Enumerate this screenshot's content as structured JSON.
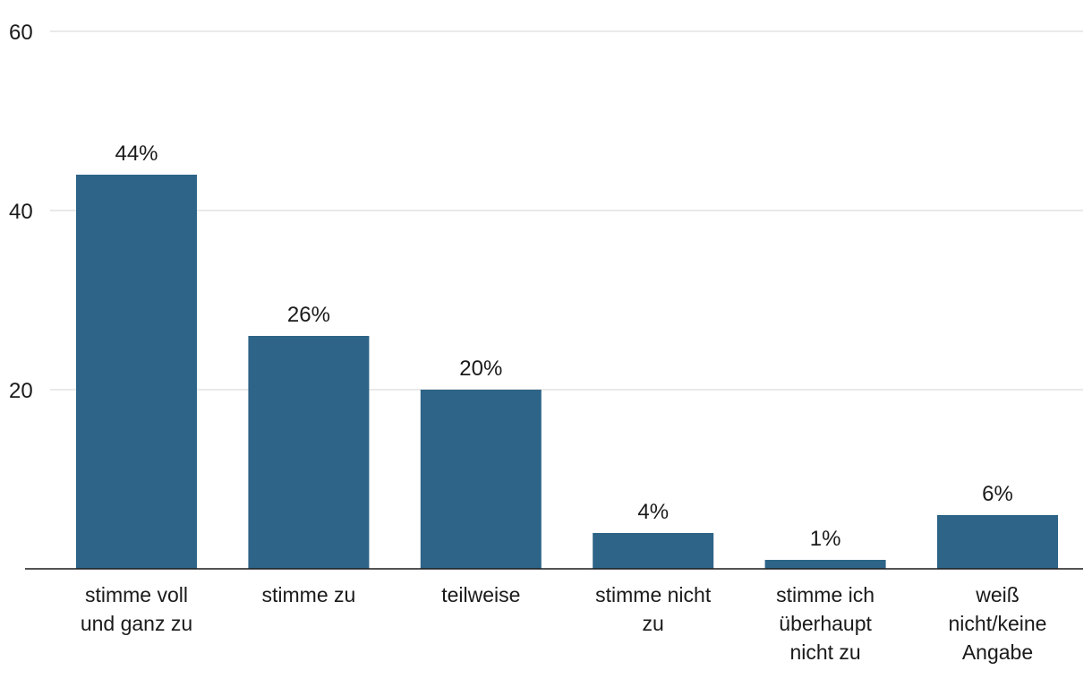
{
  "chart_data": {
    "type": "bar",
    "categories": [
      [
        "stimme voll",
        "und ganz zu"
      ],
      [
        "stimme zu"
      ],
      [
        "teilweise"
      ],
      [
        "stimme nicht",
        "zu"
      ],
      [
        "stimme ich",
        "überhaupt",
        "nicht zu"
      ],
      [
        "weiß",
        "nicht/keine",
        "Angabe"
      ]
    ],
    "values": [
      44,
      26,
      20,
      4,
      1,
      6
    ],
    "data_labels": [
      "44%",
      "26%",
      "20%",
      "4%",
      "1%",
      "6%"
    ],
    "ylim": [
      0,
      60
    ],
    "yticks": [
      20,
      40,
      60
    ],
    "grid": true,
    "bar_color": "#2d6487",
    "title": "",
    "xlabel": "",
    "ylabel": ""
  }
}
